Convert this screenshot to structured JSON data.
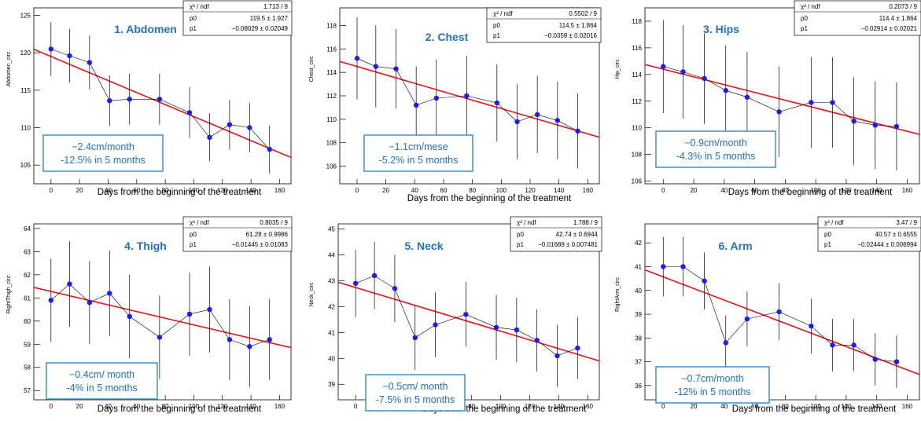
{
  "xlabel": "Days from the beginning of the treatment",
  "stats_labels": {
    "chi": "χ² / ndf",
    "p0": "p0",
    "p1": "p1"
  },
  "colors": {
    "fit": "#e8141c",
    "marker": "#1a1aff",
    "annotation": "#1f72c4",
    "box_border": "#2d8ac9"
  },
  "chart_data": [
    {
      "type": "scatter",
      "title": "1. Abdomen",
      "ylabel": "Abdomen_circ",
      "xlim": [
        -12,
        168
      ],
      "ylim": [
        102.5,
        126
      ],
      "xticks": [
        0,
        20,
        40,
        60,
        80,
        100,
        120,
        140,
        160
      ],
      "yticks": [
        105,
        110,
        115,
        120,
        125
      ],
      "x": [
        0,
        13,
        27,
        41,
        55,
        76,
        97,
        111,
        125,
        139,
        153
      ],
      "y": [
        120.5,
        119.6,
        118.7,
        113.6,
        113.8,
        113.8,
        112.0,
        108.7,
        110.4,
        110.0,
        107.1
      ],
      "yerr": [
        3.6,
        3.6,
        3.6,
        3.4,
        3.4,
        3.4,
        3.4,
        3.2,
        3.3,
        3.3,
        3.2
      ],
      "fit": {
        "p0": 119.5,
        "p1": -0.08029
      },
      "stats": {
        "chi2_ndf": "1.713 / 9",
        "p0": "119.5 ± 1.927",
        "p1": "−0.08029 ± 0.02049"
      },
      "annotation": [
        "−2.4cm/month",
        "-12.5% in 5 months"
      ]
    },
    {
      "type": "scatter",
      "title": "2. Chest",
      "ylabel": "Chest_circ",
      "xlim": [
        -12,
        168
      ],
      "ylim": [
        104.5,
        119.5
      ],
      "xticks": [
        0,
        20,
        40,
        60,
        80,
        100,
        120,
        140,
        160
      ],
      "yticks": [
        106,
        108,
        110,
        112,
        114,
        116,
        118
      ],
      "x": [
        0,
        13,
        27,
        41,
        55,
        76,
        97,
        111,
        125,
        139,
        153
      ],
      "y": [
        115.2,
        114.5,
        114.3,
        111.2,
        111.8,
        112.0,
        111.4,
        109.8,
        110.4,
        109.9,
        109.0
      ],
      "yerr": [
        3.5,
        3.5,
        3.4,
        3.3,
        3.3,
        3.4,
        3.3,
        3.2,
        3.3,
        3.3,
        3.2
      ],
      "fit": {
        "p0": 114.5,
        "p1": -0.0359
      },
      "stats": {
        "chi2_ndf": "0.5502 / 9",
        "p0": "114.5 ± 1.864",
        "p1": "−0.0359 ± 0.02016"
      },
      "annotation": [
        "−1.1cm/mese",
        "-5.2% in 5 months"
      ]
    },
    {
      "type": "scatter",
      "title": "3. Hips",
      "ylabel": "Hip_circ",
      "xlim": [
        -12,
        168
      ],
      "ylim": [
        105.8,
        119
      ],
      "xticks": [
        0,
        20,
        40,
        60,
        80,
        100,
        120,
        140,
        160
      ],
      "yticks": [
        106,
        108,
        110,
        112,
        114,
        116,
        118
      ],
      "x": [
        0,
        13,
        27,
        41,
        55,
        76,
        97,
        111,
        125,
        139,
        153
      ],
      "y": [
        114.6,
        114.2,
        113.7,
        112.8,
        112.3,
        111.2,
        111.9,
        111.9,
        110.5,
        110.2,
        110.1
      ],
      "yerr": [
        3.5,
        3.5,
        3.4,
        3.4,
        3.4,
        3.4,
        3.4,
        3.4,
        3.3,
        3.3,
        3.3
      ],
      "fit": {
        "p0": 114.4,
        "p1": -0.02914
      },
      "stats": {
        "chi2_ndf": "0.2073 / 9",
        "p0": "114.4 ± 1.864",
        "p1": "−0.02914 ± 0.02021"
      },
      "annotation": [
        "−0.9cm/month",
        "-4.3% in 5 months"
      ]
    },
    {
      "type": "scatter",
      "title": "4. Thigh",
      "ylabel": "RightThigh_circ",
      "xlim": [
        -12,
        168
      ],
      "ylim": [
        56.6,
        64.2
      ],
      "xticks": [
        0,
        20,
        40,
        60,
        80,
        100,
        120,
        140,
        160
      ],
      "yticks": [
        57,
        58,
        59,
        60,
        61,
        62,
        63,
        64
      ],
      "x": [
        0,
        13,
        27,
        41,
        55,
        76,
        97,
        111,
        125,
        139,
        153
      ],
      "y": [
        60.9,
        61.6,
        60.8,
        61.2,
        60.2,
        59.3,
        60.3,
        60.5,
        59.2,
        58.9,
        59.2
      ],
      "yerr": [
        1.8,
        1.85,
        1.8,
        1.85,
        1.8,
        1.8,
        1.8,
        1.85,
        1.75,
        1.75,
        1.75
      ],
      "fit": {
        "p0": 61.28,
        "p1": -0.01445
      },
      "stats": {
        "chi2_ndf": "0.8035 / 9",
        "p0": "61.28 ± 0.9986",
        "p1": "−0.01445 ± 0.01083"
      },
      "annotation": [
        "−0.4cm/ month",
        "-4% in 5 months"
      ]
    },
    {
      "type": "scatter",
      "title": "5. Neck",
      "ylabel": "Neck_circ",
      "xlim": [
        -12,
        168
      ],
      "ylim": [
        38.4,
        45.2
      ],
      "xticks": [
        0,
        20,
        40,
        60,
        80,
        100,
        120,
        140,
        160
      ],
      "yticks": [
        39,
        40,
        41,
        42,
        43,
        44,
        45
      ],
      "x": [
        0,
        13,
        27,
        41,
        55,
        76,
        97,
        111,
        125,
        139,
        153
      ],
      "y": [
        42.9,
        43.2,
        42.7,
        40.8,
        41.3,
        41.7,
        41.2,
        41.1,
        40.7,
        40.1,
        40.4
      ],
      "yerr": [
        1.3,
        1.3,
        1.3,
        1.25,
        1.25,
        1.25,
        1.25,
        1.25,
        1.2,
        1.2,
        1.2
      ],
      "fit": {
        "p0": 42.74,
        "p1": -0.01689
      },
      "stats": {
        "chi2_ndf": "1.788 / 9",
        "p0": "42.74 ± 0.6944",
        "p1": "−0.01689 ± 0.007481"
      },
      "annotation": [
        "−0.5cm/ month",
        "-7.5% in 5 months"
      ]
    },
    {
      "type": "scatter",
      "title": "6. Arm",
      "ylabel": "RightArm_circ",
      "xlim": [
        -12,
        168
      ],
      "ylim": [
        35.4,
        42.8
      ],
      "xticks": [
        0,
        20,
        40,
        60,
        80,
        100,
        120,
        140,
        160
      ],
      "yticks": [
        36,
        37,
        38,
        39,
        40,
        41,
        42
      ],
      "x": [
        0,
        13,
        27,
        41,
        55,
        76,
        97,
        111,
        125,
        139,
        153
      ],
      "y": [
        41.0,
        41.0,
        40.4,
        37.8,
        38.8,
        39.1,
        38.5,
        37.7,
        37.7,
        37.1,
        37.0
      ],
      "yerr": [
        1.25,
        1.25,
        1.2,
        1.15,
        1.15,
        1.2,
        1.15,
        1.1,
        1.1,
        1.1,
        1.1
      ],
      "fit": {
        "p0": 40.57,
        "p1": -0.02444
      },
      "stats": {
        "chi2_ndf": "3.47 / 9",
        "p0": "40.57 ± 0.6555",
        "p1": "−0.02444 ± 0.006994"
      },
      "annotation": [
        "−0.7cm/month",
        "-12% in 5 months"
      ]
    }
  ]
}
